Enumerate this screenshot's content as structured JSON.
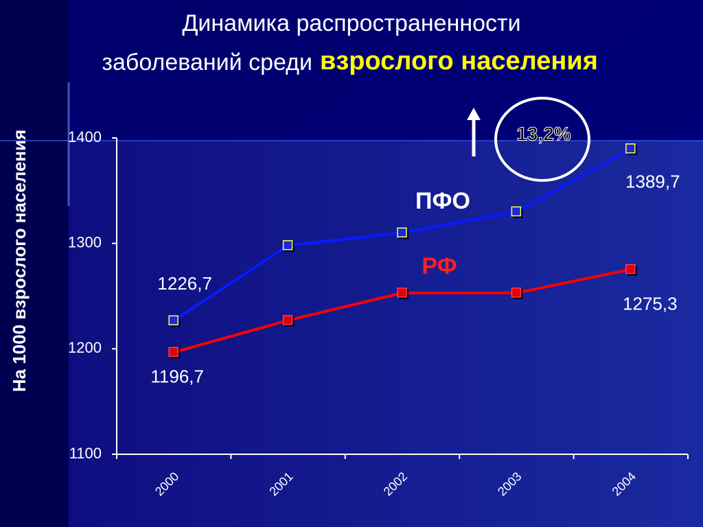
{
  "chart_data": {
    "type": "line",
    "title_lines": [
      "Динамика распространенности",
      "заболеваний среди"
    ],
    "title_highlight": "взрослого населения",
    "y_label": "На 1000 взрослого  населения",
    "categories": [
      "2000",
      "2001",
      "2002",
      "2003",
      "2004"
    ],
    "series": [
      {
        "name": "ПФО",
        "color": "#0a1aff",
        "marker_color": "#1a2ad8",
        "values": [
          1226.7,
          1298,
          1310,
          1330,
          1389.7
        ],
        "value_labels": [
          "1226,7",
          null,
          null,
          null,
          "1389,7"
        ]
      },
      {
        "name": "РФ",
        "color": "#ff0000",
        "marker_color": "#e00010",
        "values": [
          1196.7,
          1227,
          1253,
          1253,
          1275.3
        ],
        "value_labels": [
          "1196,7",
          null,
          null,
          null,
          "1275,3"
        ]
      }
    ],
    "ylim": [
      1100,
      1400
    ],
    "yticks": [
      1100,
      1200,
      1300,
      1400
    ],
    "annotations": [
      "13,2%"
    ]
  }
}
